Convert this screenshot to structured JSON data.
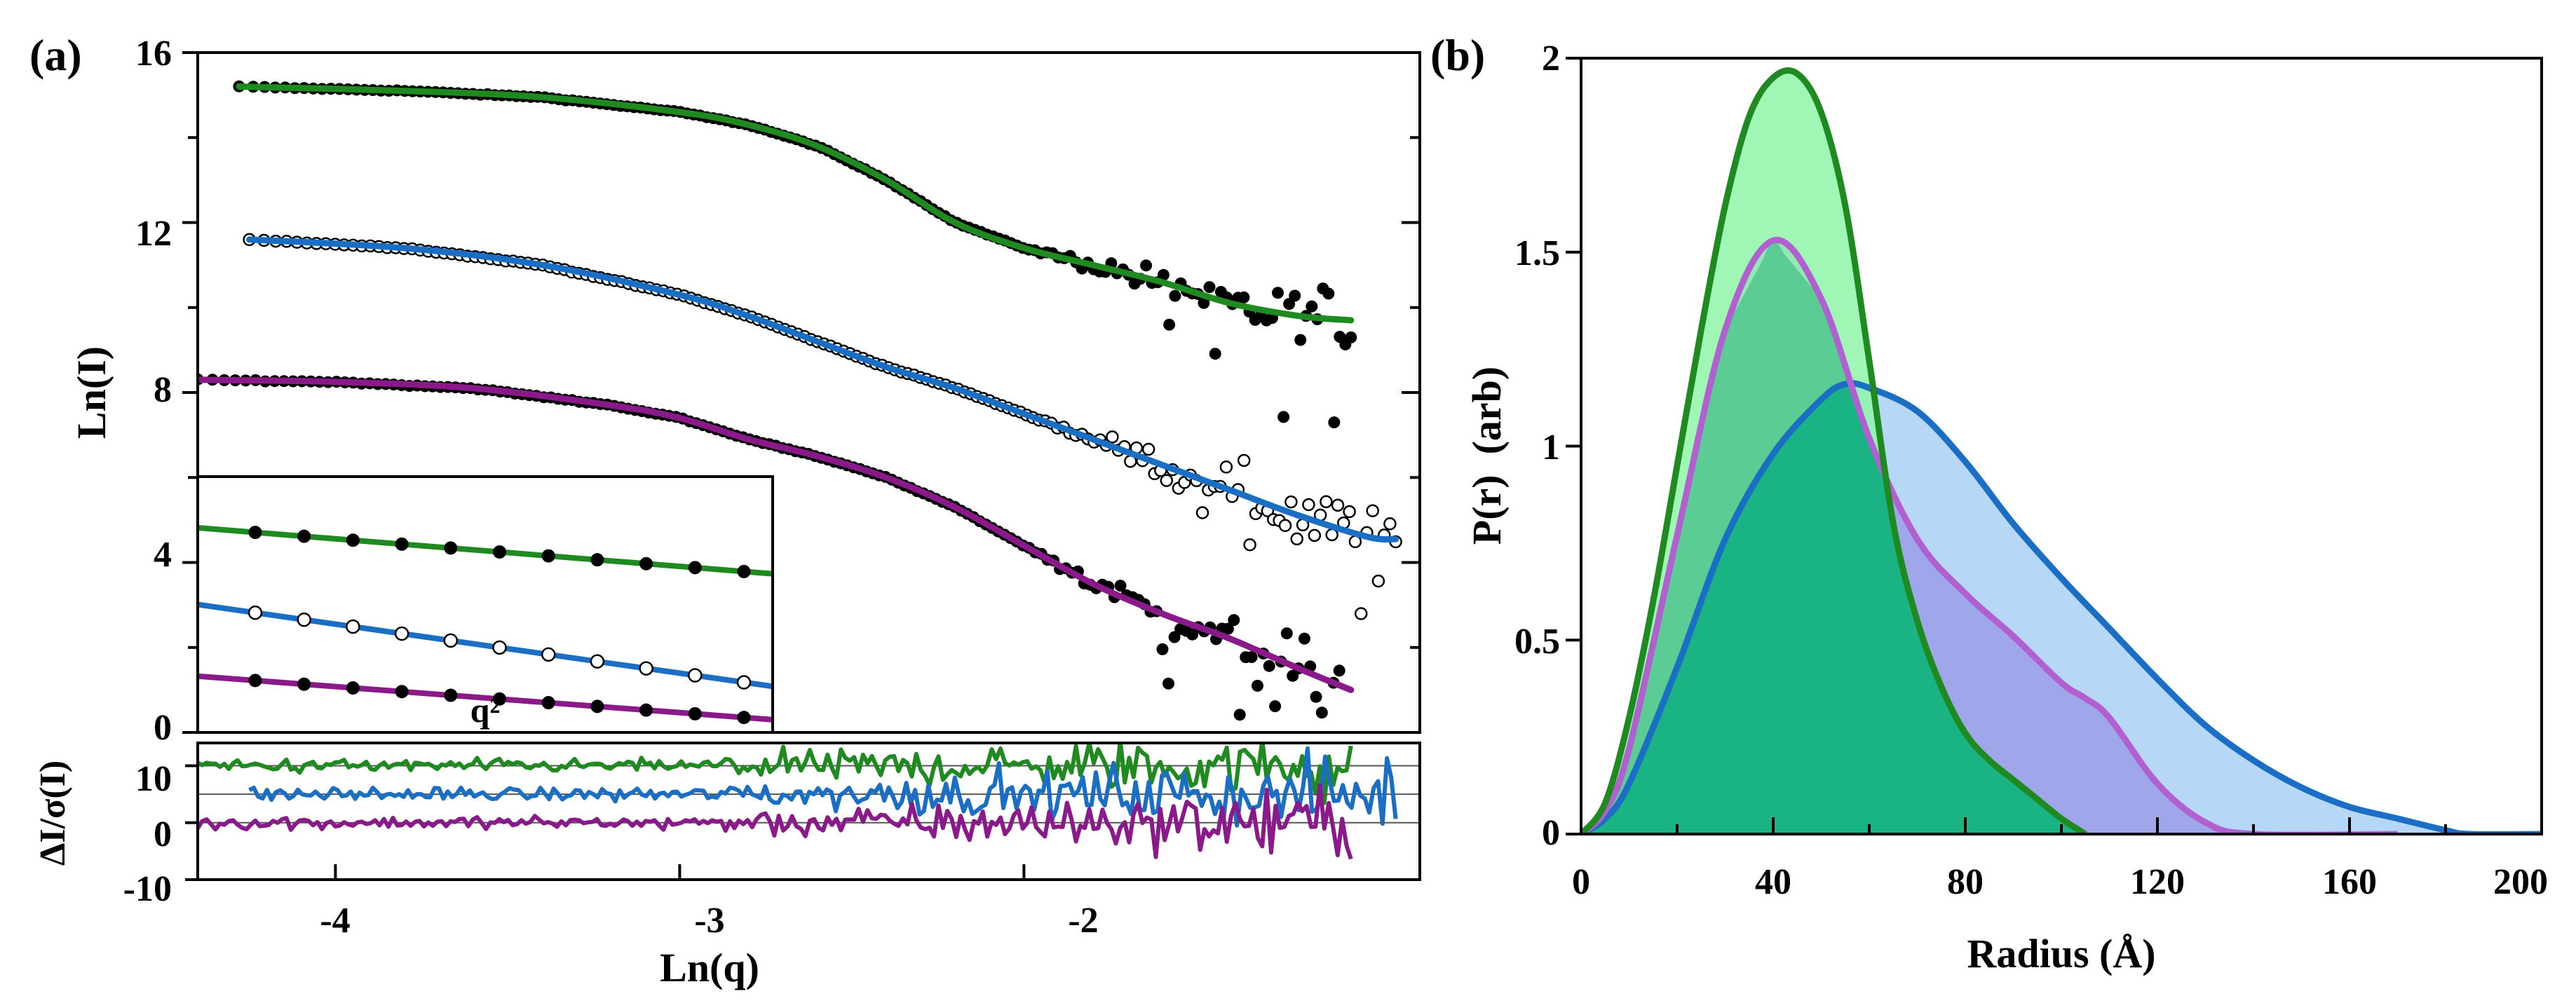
{
  "panels": {
    "a": {
      "tag": "(a)",
      "ylabel": "Ln(I)",
      "xlabel": "Ln(q)",
      "yticks": [
        "16",
        "12",
        "8",
        "4",
        "0"
      ],
      "xticks": [
        "-4",
        "-3",
        "-2"
      ],
      "residual_ylabel": "ΔI/σ(I)",
      "residual_yticks": [
        "10",
        "0",
        "-10"
      ],
      "inset_xlabel": "q²"
    },
    "b": {
      "tag": "(b)",
      "ylabel": "P(r)  (arb)",
      "xlabel": "Radius (Å)",
      "yticks": [
        "2",
        "1.5",
        "1",
        "0.5",
        "0"
      ],
      "xticks": [
        "0",
        "40",
        "80",
        "120",
        "160",
        "200"
      ]
    }
  },
  "colors": {
    "green": "#1f8a1f",
    "blue": "#1a6fc4",
    "purple": "#8a1a8a",
    "green_fill": "#8ef5a8",
    "blue_fill": "#a9d0f5",
    "purple_fill": "#9b9ee6",
    "teal_fill": "#00b38c",
    "points": "#000000"
  },
  "chart_data": [
    {
      "type": "scatter",
      "panel": "a-main",
      "xlabel": "Ln(q)",
      "ylabel": "Ln(I)",
      "xlim": [
        -4.4,
        -0.85
      ],
      "ylim": [
        0,
        16
      ],
      "series": [
        {
          "color": "green",
          "marker": "filled",
          "x": [
            -4.28,
            -3.8,
            -3.4,
            -3.0,
            -2.8,
            -2.6,
            -2.4,
            -2.2,
            -2.0,
            -1.8,
            -1.6,
            -1.4,
            -1.2,
            -1.05
          ],
          "y": [
            15.2,
            15.1,
            14.95,
            14.6,
            14.3,
            13.8,
            13.0,
            12.0,
            11.4,
            11.0,
            10.6,
            10.1,
            9.8,
            9.7
          ]
        },
        {
          "color": "blue",
          "marker": "open",
          "x": [
            -4.25,
            -3.8,
            -3.4,
            -3.0,
            -2.8,
            -2.6,
            -2.4,
            -2.2,
            -2.0,
            -1.8,
            -1.6,
            -1.4,
            -1.2,
            -1.0
          ],
          "y": [
            11.6,
            11.4,
            11.0,
            10.3,
            9.8,
            9.2,
            8.6,
            8.1,
            7.5,
            6.9,
            6.3,
            5.7,
            5.1,
            4.6
          ],
          "fit_end": [
            -0.92,
            4.55
          ]
        },
        {
          "color": "purple",
          "marker": "filled",
          "x": [
            -4.4,
            -4.0,
            -3.6,
            -3.2,
            -3.0,
            -2.8,
            -2.6,
            -2.4,
            -2.2,
            -2.0,
            -1.8,
            -1.6,
            -1.4,
            -1.2,
            -1.05
          ],
          "y": [
            8.3,
            8.25,
            8.1,
            7.7,
            7.4,
            6.9,
            6.5,
            6.0,
            5.3,
            4.4,
            3.5,
            2.8,
            2.2,
            1.5,
            1.0
          ]
        }
      ]
    },
    {
      "type": "scatter",
      "panel": "a-inset",
      "xlabel": "q²",
      "series": [
        {
          "color": "green",
          "marker": "filled",
          "x": [
            0,
            1
          ],
          "y": [
            0.8,
            0.62
          ]
        },
        {
          "color": "blue",
          "marker": "open",
          "x": [
            0,
            1
          ],
          "y": [
            0.5,
            0.18
          ]
        },
        {
          "color": "purple",
          "marker": "filled",
          "x": [
            0,
            1
          ],
          "y": [
            0.22,
            0.05
          ]
        }
      ]
    },
    {
      "type": "line",
      "panel": "a-residuals",
      "ylabel": "ΔI/σ(I)",
      "ylim": [
        -10,
        14
      ],
      "series": [
        {
          "color": "green",
          "offset": 10,
          "x_start": -4.4,
          "x_end": -1.05
        },
        {
          "color": "blue",
          "offset": 5,
          "x_start": -4.25,
          "x_end": -0.92
        },
        {
          "color": "purple",
          "offset": 0,
          "x_start": -4.4,
          "x_end": -1.05
        }
      ]
    },
    {
      "type": "area",
      "panel": "b",
      "xlabel": "Radius (Å)",
      "ylabel": "P(r)  (arb)",
      "xlim": [
        0,
        200
      ],
      "ylim": [
        0,
        2
      ],
      "series": [
        {
          "color": "blue",
          "x": [
            0,
            5,
            10,
            20,
            30,
            40,
            50,
            55,
            60,
            70,
            80,
            90,
            100,
            110,
            120,
            130,
            140,
            150,
            160,
            170,
            180,
            185,
            200
          ],
          "y": [
            0,
            0.04,
            0.13,
            0.43,
            0.76,
            0.98,
            1.12,
            1.16,
            1.15,
            1.09,
            0.96,
            0.8,
            0.66,
            0.53,
            0.4,
            0.28,
            0.19,
            0.12,
            0.07,
            0.04,
            0.01,
            0,
            0
          ]
        },
        {
          "color": "purple",
          "x": [
            0,
            5,
            10,
            20,
            30,
            40,
            50,
            60,
            70,
            80,
            90,
            100,
            105,
            110,
            120,
            130,
            140,
            170
          ],
          "y": [
            0,
            0.06,
            0.22,
            0.77,
            1.3,
            1.53,
            1.38,
            1.02,
            0.76,
            0.62,
            0.51,
            0.39,
            0.35,
            0.3,
            0.13,
            0.03,
            0,
            0
          ]
        },
        {
          "color": "green",
          "x": [
            0,
            5,
            10,
            15,
            20,
            25,
            30,
            35,
            40,
            45,
            50,
            55,
            60,
            65,
            70,
            75,
            80,
            85,
            90,
            95,
            100,
            105
          ],
          "y": [
            0,
            0.08,
            0.3,
            0.6,
            0.95,
            1.3,
            1.62,
            1.85,
            1.95,
            1.96,
            1.86,
            1.62,
            1.22,
            0.8,
            0.55,
            0.38,
            0.26,
            0.19,
            0.14,
            0.09,
            0.04,
            0
          ]
        }
      ]
    }
  ]
}
